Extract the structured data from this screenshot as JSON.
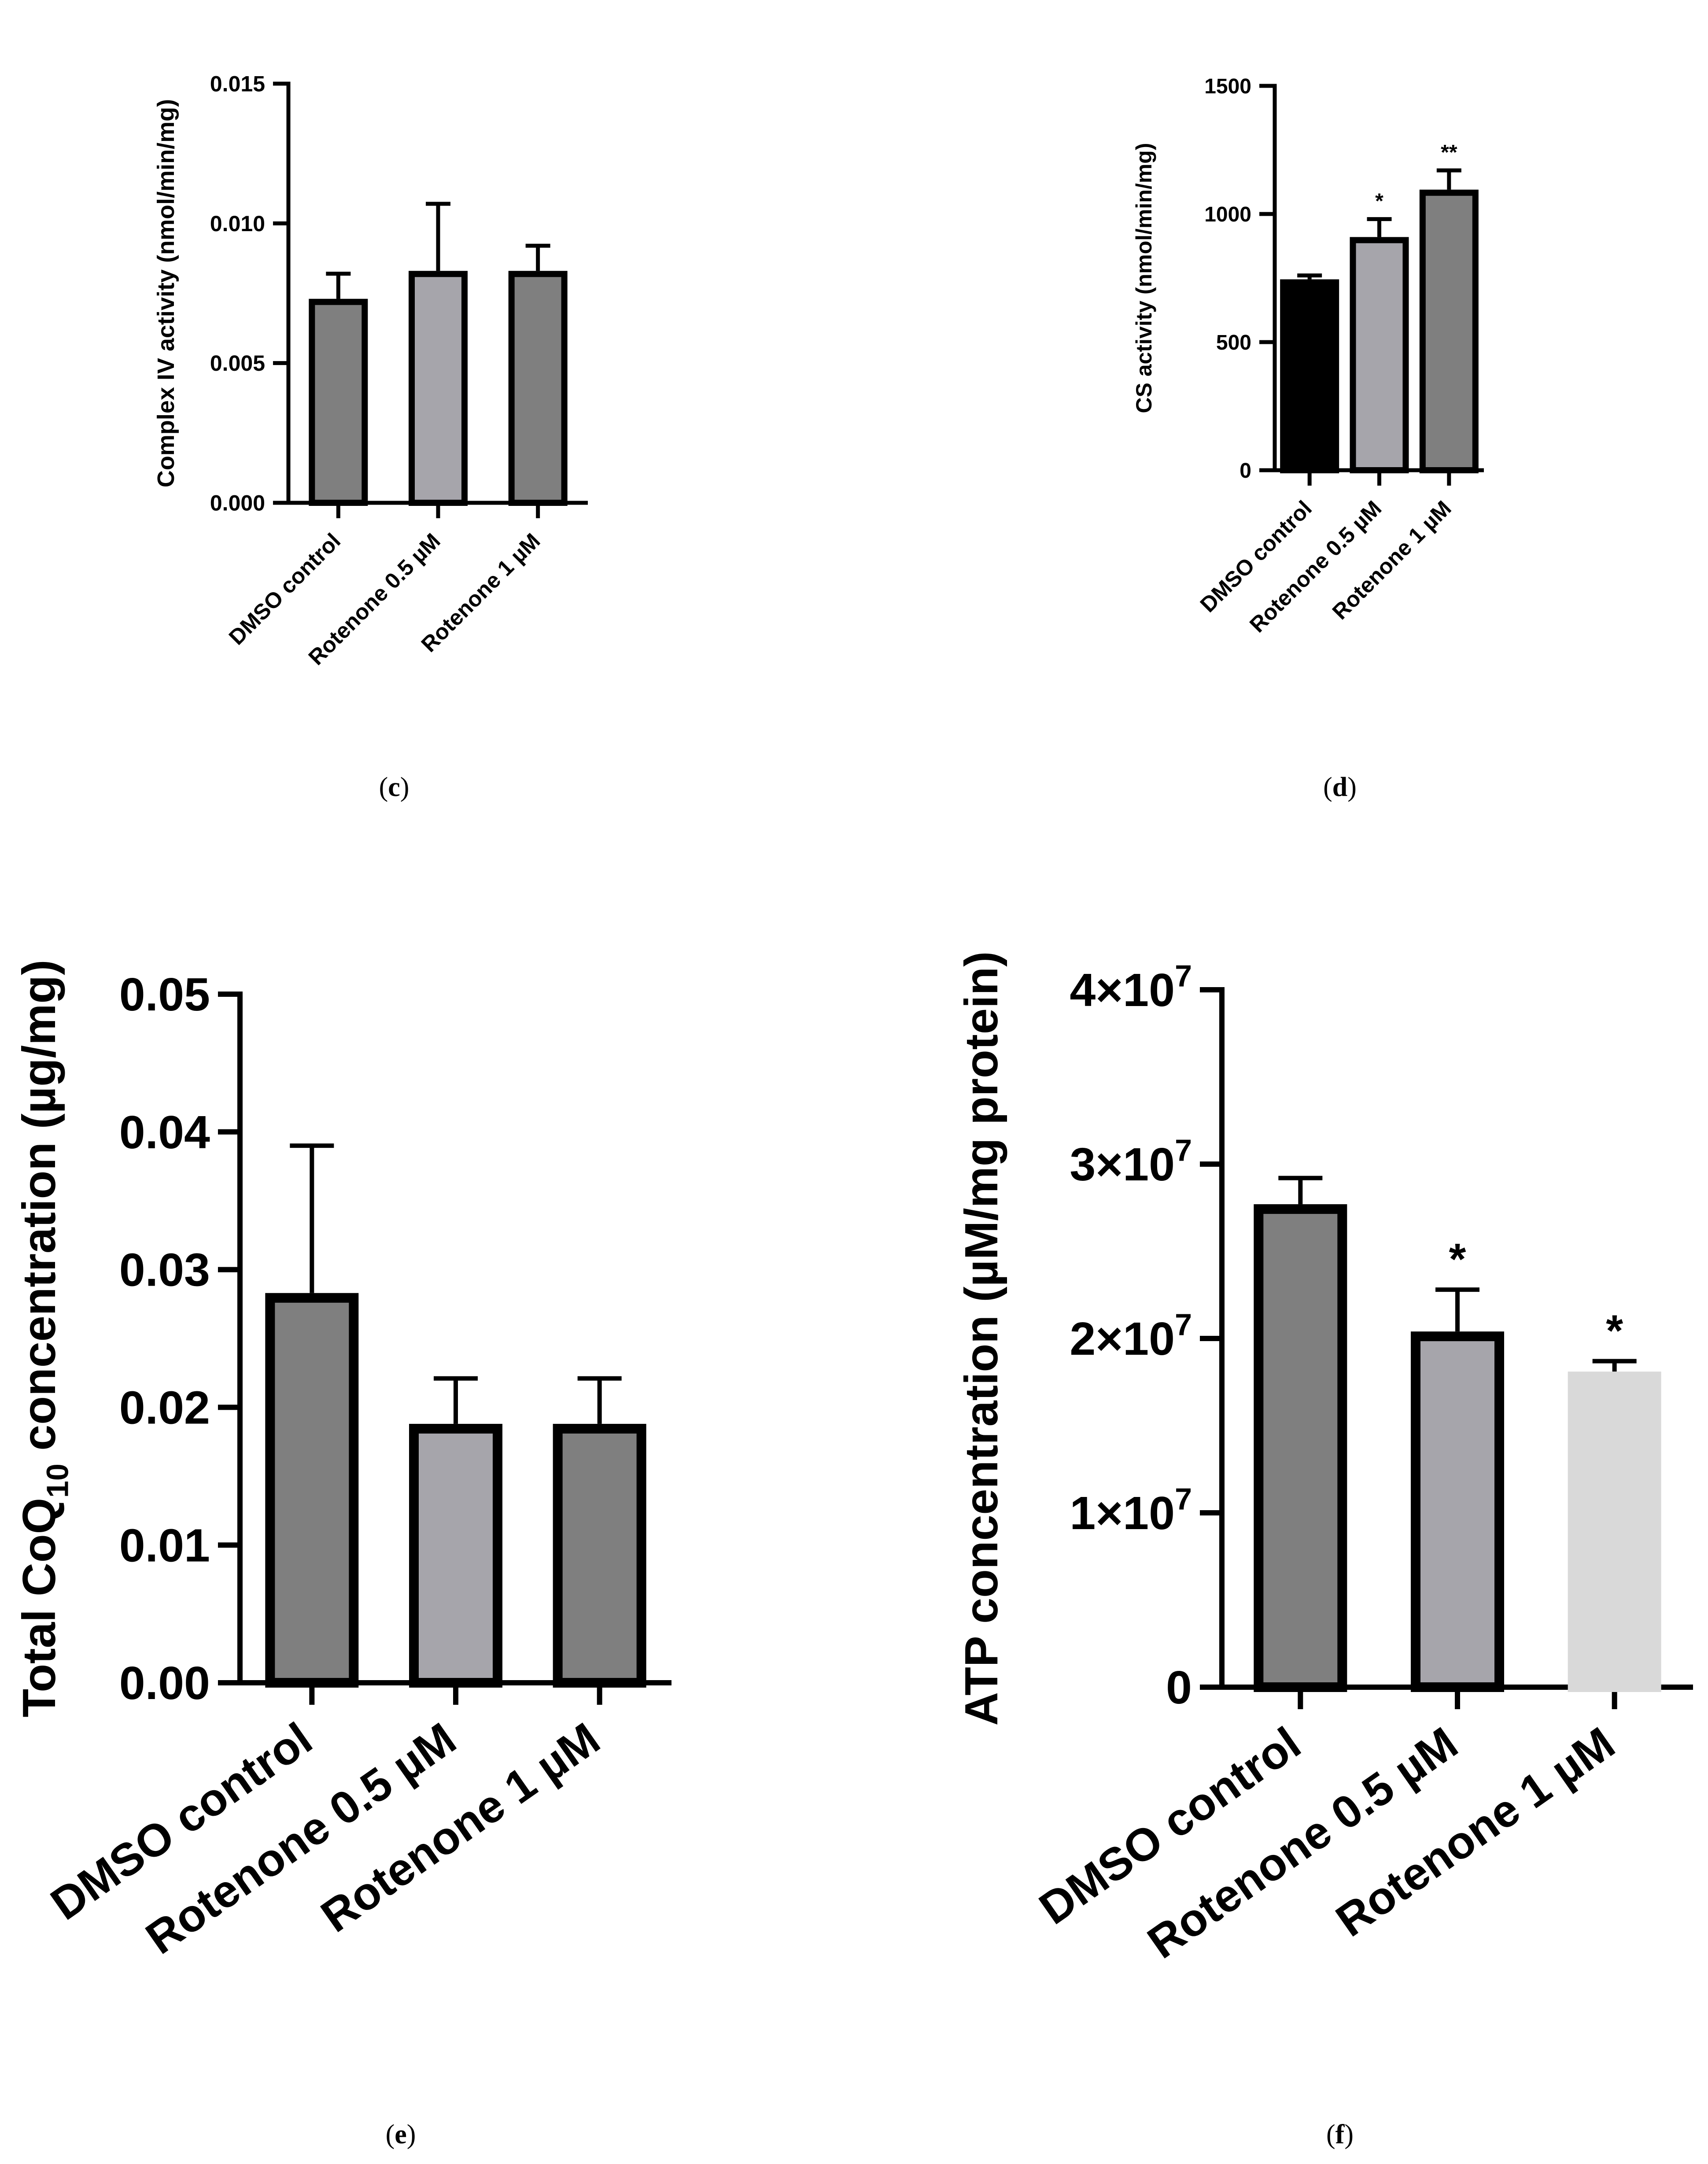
{
  "chart_data": [
    {
      "type": "bar",
      "panel": "c",
      "panel_label": "c",
      "ylabel": "Complex IV activity (nmol/min/mg)",
      "xlabel": "",
      "categories": [
        "DMSO control",
        "Rotenone 0.5 µM",
        "Rotenone 1 µM"
      ],
      "values": [
        0.0073,
        0.0083,
        0.0083
      ],
      "errors": [
        0.0009,
        0.0024,
        0.0009
      ],
      "significance": [
        "",
        "",
        ""
      ],
      "bar_colors": [
        "#7f7f7f",
        "#a6a5ab",
        "#7f7f7f"
      ],
      "ylim": [
        0,
        0.015
      ],
      "yticks": [
        0,
        0.005,
        0.01,
        0.015
      ],
      "ytick_labels": [
        "0.000",
        "0.005",
        "0.010",
        "0.015"
      ]
    },
    {
      "type": "bar",
      "panel": "d",
      "panel_label": "d",
      "ylabel": "CS activity (nmol/min/mg)",
      "xlabel": "",
      "categories": [
        "DMSO control",
        "Rotenone 0.5 µM",
        "Rotenone 1 µM"
      ],
      "values": [
        745,
        910,
        1095
      ],
      "errors": [
        15,
        70,
        75
      ],
      "significance": [
        "",
        "*",
        "**"
      ],
      "bar_colors": [
        "#000000",
        "#a6a5ab",
        "#7f7f7f"
      ],
      "ylim": [
        0,
        1500
      ],
      "yticks": [
        0,
        500,
        1000,
        1500
      ],
      "ytick_labels": [
        "0",
        "500",
        "1000",
        "1500"
      ]
    },
    {
      "type": "bar",
      "panel": "e",
      "panel_label": "e",
      "ylabel_parts": [
        "Total CoQ",
        "10",
        " concentration (µg/mg)"
      ],
      "xlabel": "",
      "categories": [
        "DMSO control",
        "Rotenone 0.5 µM",
        "Rotenone 1 µM"
      ],
      "values": [
        0.0283,
        0.0188,
        0.0188
      ],
      "errors": [
        0.0107,
        0.0033,
        0.0033
      ],
      "significance": [
        "",
        "",
        ""
      ],
      "bar_colors": [
        "#7f7f7f",
        "#a6a5ab",
        "#7f7f7f"
      ],
      "ylim": [
        0,
        0.05
      ],
      "yticks": [
        0,
        0.01,
        0.02,
        0.03,
        0.04,
        0.05
      ],
      "ytick_labels": [
        "0.00",
        "0.01",
        "0.02",
        "0.03",
        "0.04",
        "0.05"
      ]
    },
    {
      "type": "bar",
      "panel": "f",
      "panel_label": "f",
      "ylabel": "ATP concentration (µM/mg protein)",
      "xlabel": "",
      "categories": [
        "DMSO control",
        "Rotenone 0.5 µM",
        "Rotenone 1 µM"
      ],
      "values": [
        27700000,
        20400000,
        18100000
      ],
      "errors": [
        1500000,
        2400000,
        600000
      ],
      "significance": [
        "",
        "*",
        "*"
      ],
      "bar_colors": [
        "#7f7f7f",
        "#a6a5ab",
        "#d9d9d9"
      ],
      "ylim": [
        0,
        40000000
      ],
      "yticks": [
        0,
        10000000,
        20000000,
        30000000,
        40000000
      ],
      "ytick_labels": [
        {
          "base": "0",
          "exp": ""
        },
        {
          "base": "1×10",
          "exp": "7"
        },
        {
          "base": "2×10",
          "exp": "7"
        },
        {
          "base": "3×10",
          "exp": "7"
        },
        {
          "base": "4×10",
          "exp": "7"
        }
      ]
    }
  ]
}
